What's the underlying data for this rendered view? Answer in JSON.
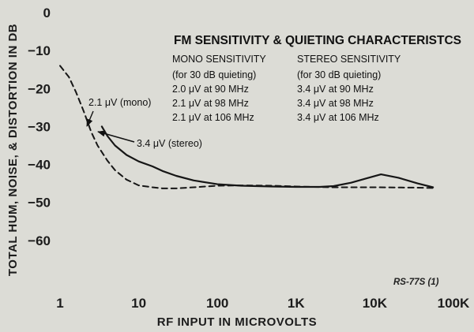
{
  "chart_data": {
    "type": "line",
    "title": "FM SENSITIVITY & QUIETING CHARACTERISTCS",
    "xlabel": "RF INPUT IN MICROVOLTS",
    "ylabel": "TOTAL HUM, NOISE, & DISTORTION IN DB",
    "x_scale": "log",
    "xlim": [
      1,
      100000
    ],
    "ylim": [
      -70,
      0
    ],
    "x_ticks": [
      {
        "value": 1,
        "label": "1"
      },
      {
        "value": 10,
        "label": "10"
      },
      {
        "value": 100,
        "label": "100"
      },
      {
        "value": 1000,
        "label": "1K"
      },
      {
        "value": 10000,
        "label": "10K"
      },
      {
        "value": 100000,
        "label": "100K"
      }
    ],
    "y_ticks": [
      {
        "value": 0,
        "label": "0"
      },
      {
        "value": -10,
        "label": "−10"
      },
      {
        "value": -20,
        "label": "−20"
      },
      {
        "value": -30,
        "label": "−30"
      },
      {
        "value": -40,
        "label": "−40"
      },
      {
        "value": -50,
        "label": "−50"
      },
      {
        "value": -60,
        "label": "−60"
      }
    ],
    "grid": false,
    "series": [
      {
        "style": "dashed",
        "x": [
          1,
          1.3,
          1.6,
          2,
          2.5,
          3,
          4,
          5,
          7,
          10,
          15,
          20,
          30,
          50,
          100,
          200,
          500,
          1000,
          3000,
          10000,
          30000,
          55000
        ],
        "y": [
          -14,
          -17,
          -21,
          -26,
          -31.5,
          -35,
          -39,
          -41.5,
          -44,
          -45.5,
          -46,
          -46.3,
          -46.3,
          -46,
          -45.6,
          -45.5,
          -45.6,
          -45.8,
          -46,
          -46,
          -46.1,
          -46.2
        ]
      },
      {
        "style": "solid",
        "x": [
          3.4,
          4,
          5,
          7,
          10,
          15,
          20,
          30,
          50,
          100,
          200,
          500,
          1000,
          2000,
          3000,
          5000,
          8000,
          12000,
          20000,
          35000,
          55000
        ],
        "y": [
          -30,
          -32.5,
          -35,
          -37.5,
          -39.2,
          -40.5,
          -41.7,
          -43,
          -44.2,
          -45.2,
          -45.6,
          -45.8,
          -45.9,
          -45.9,
          -45.7,
          -44.8,
          -43.6,
          -42.6,
          -43.5,
          -45,
          -46
        ]
      }
    ],
    "annotations": [
      {
        "text": "2.1 μV (mono)",
        "x": 2.1,
        "y": -30
      },
      {
        "text": "3.4 μV (stereo)",
        "x": 3.4,
        "y": -30
      }
    ],
    "table": {
      "mono": {
        "header": "MONO SENSITIVITY",
        "sub": "(for 30 dB quieting)",
        "rows": [
          "2.0 μV at 90 MHz",
          "2.1 μV at 98 MHz",
          "2.1 μV at 106 MHz"
        ]
      },
      "stereo": {
        "header": "STEREO SENSITIVITY",
        "sub": "(for 30 dB quieting)",
        "rows": [
          "3.4 μV at 90 MHz",
          "3.4 μV at 98 MHz",
          "3.4 μV at 106 MHz"
        ]
      }
    },
    "figure_ref": "RS-77S (1)"
  }
}
